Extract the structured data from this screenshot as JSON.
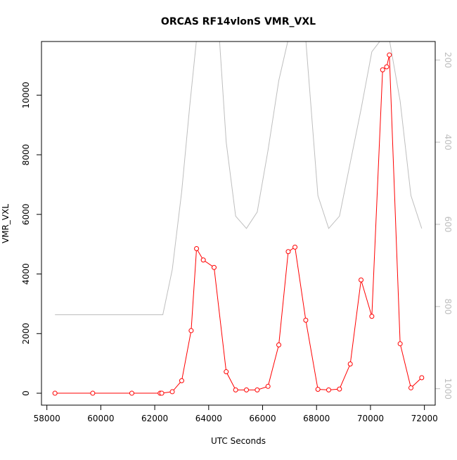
{
  "chart_data": {
    "type": "line",
    "title": "ORCAS RF14vlonS VMR_VXL",
    "xlabel": "UTC Seconds",
    "ylabel": "VMR_VXL",
    "xlim": [
      57800,
      72400
    ],
    "ylim": [
      -400,
      11800
    ],
    "y2lim": [
      1040,
      155
    ],
    "y2_reversed": true,
    "x_ticks": [
      58000,
      60000,
      62000,
      64000,
      66000,
      68000,
      70000,
      72000
    ],
    "y_ticks": [
      0,
      2000,
      4000,
      6000,
      8000,
      10000
    ],
    "y2_ticks": [
      200,
      400,
      600,
      800,
      1000
    ],
    "grid": false,
    "legend": "none",
    "series": [
      {
        "axis": "left",
        "color": "#ff0000",
        "markers": "open-circle",
        "x": [
          58300,
          59700,
          61150,
          62200,
          62260,
          62650,
          63000,
          63350,
          63550,
          63800,
          64200,
          64650,
          65000,
          65400,
          65800,
          66200,
          66600,
          66950,
          67200,
          67600,
          68050,
          68450,
          68850,
          69250,
          69650,
          70050,
          70450,
          70600,
          70700,
          71100,
          71500,
          71900
        ],
        "y": [
          0,
          0,
          0,
          0,
          0,
          50,
          420,
          2100,
          4850,
          4470,
          4220,
          720,
          110,
          110,
          110,
          230,
          1620,
          4750,
          4900,
          2450,
          130,
          110,
          140,
          980,
          3800,
          2580,
          10850,
          10950,
          11350,
          1660,
          180,
          520
        ]
      },
      {
        "axis": "right",
        "color": "#bebebe",
        "markers": "none",
        "x": [
          58300,
          61150,
          62300,
          62650,
          63000,
          63300,
          63550,
          64000,
          64400,
          64650,
          65000,
          65400,
          65800,
          66200,
          66600,
          66950,
          67200,
          67600,
          68050,
          68450,
          68850,
          69250,
          69650,
          70050,
          70400,
          70700,
          71100,
          71500,
          71900
        ],
        "y": [
          820,
          820,
          820,
          710,
          520,
          310,
          150,
          150,
          150,
          400,
          580,
          610,
          570,
          420,
          250,
          150,
          150,
          150,
          530,
          610,
          580,
          450,
          320,
          180,
          150,
          150,
          300,
          530,
          610
        ]
      }
    ]
  }
}
